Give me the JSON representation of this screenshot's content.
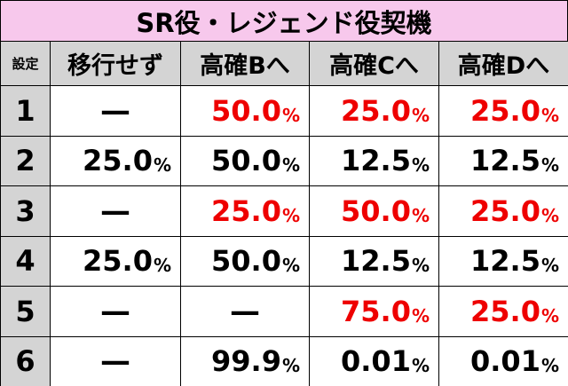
{
  "title": "SR役・レジェンド役契機",
  "table": {
    "header": [
      "設定",
      "移行せず",
      "高確Bへ",
      "高確Cへ",
      "高確Dへ"
    ],
    "highlight_color": "#ee0000",
    "rows": [
      {
        "label": "1",
        "cells": [
          {
            "text": "—"
          },
          {
            "text": "50.0",
            "unit": "%",
            "highlight": true
          },
          {
            "text": "25.0",
            "unit": "%",
            "highlight": true
          },
          {
            "text": "25.0",
            "unit": "%",
            "highlight": true
          }
        ]
      },
      {
        "label": "2",
        "cells": [
          {
            "text": "25.0",
            "unit": "%"
          },
          {
            "text": "50.0",
            "unit": "%"
          },
          {
            "text": "12.5",
            "unit": "%"
          },
          {
            "text": "12.5",
            "unit": "%"
          }
        ]
      },
      {
        "label": "3",
        "cells": [
          {
            "text": "—"
          },
          {
            "text": "25.0",
            "unit": "%",
            "highlight": true
          },
          {
            "text": "50.0",
            "unit": "%",
            "highlight": true
          },
          {
            "text": "25.0",
            "unit": "%",
            "highlight": true
          }
        ]
      },
      {
        "label": "4",
        "cells": [
          {
            "text": "25.0",
            "unit": "%"
          },
          {
            "text": "50.0",
            "unit": "%"
          },
          {
            "text": "12.5",
            "unit": "%"
          },
          {
            "text": "12.5",
            "unit": "%"
          }
        ]
      },
      {
        "label": "5",
        "cells": [
          {
            "text": "—"
          },
          {
            "text": "—"
          },
          {
            "text": "75.0",
            "unit": "%",
            "highlight": true
          },
          {
            "text": "25.0",
            "unit": "%",
            "highlight": true
          }
        ]
      },
      {
        "label": "6",
        "cells": [
          {
            "text": "—"
          },
          {
            "text": "99.9",
            "unit": "%"
          },
          {
            "text": "0.01",
            "unit": "%"
          },
          {
            "text": "0.01",
            "unit": "%"
          }
        ]
      }
    ]
  }
}
